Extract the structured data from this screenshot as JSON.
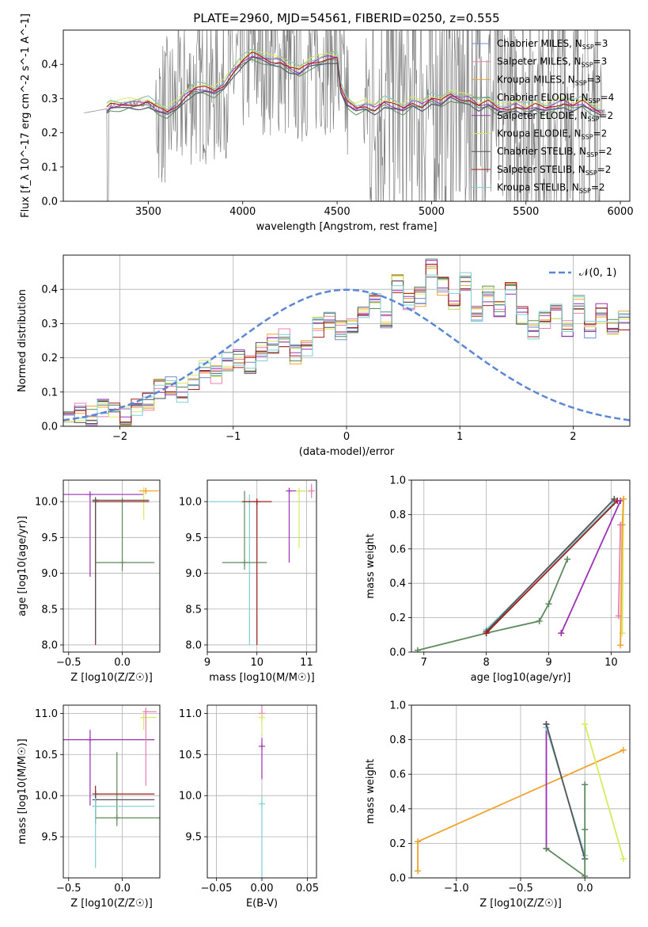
{
  "figure_title": "PLATE=2960, MJD=54561, FIBERID=0250, z=0.555",
  "colors": {
    "Chabrier MILES": "#6f8fd0",
    "Salpeter MILES": "#e87fb0",
    "Kroupa MILES": "#f0a22e",
    "Chabrier ELODIE": "#5d8a5d",
    "Salpeter ELODIE": "#9b30b4",
    "Kroupa ELODIE": "#d8ea62",
    "Chabrier STELIB": "#555555",
    "Salpeter STELIB": "#a01c1c",
    "Kroupa STELIB": "#7ecfd6",
    "data": "#808080",
    "gaussian": "#5b86d6"
  },
  "chart_data": [
    {
      "id": "spectrum",
      "type": "line",
      "title": "PLATE=2960, MJD=54561, FIBERID=0250, z=0.555",
      "xlabel": "wavelength [Angstrom, rest frame]",
      "ylabel": "Flux [f_λ 10^-17 erg cm^-2 s^-1 A^-1]",
      "xlim": [
        3050,
        6050
      ],
      "ylim": [
        0,
        0.5
      ],
      "xticks": [
        3500,
        4000,
        4500,
        5000,
        5500,
        6000
      ],
      "yticks": [
        0.0,
        0.1,
        0.2,
        0.3,
        0.4
      ],
      "legend_position": "top-right",
      "legend": [
        {
          "label": "Chabrier MILES, N",
          "sub": "SSP",
          "suffix": "=3",
          "key": "Chabrier MILES"
        },
        {
          "label": "Salpeter MILES, N",
          "sub": "SSP",
          "suffix": "=3",
          "key": "Salpeter MILES"
        },
        {
          "label": "Kroupa MILES, N",
          "sub": "SSP",
          "suffix": "=3",
          "key": "Kroupa MILES"
        },
        {
          "label": "Chabrier ELODIE, N",
          "sub": "SSP",
          "suffix": "=4",
          "key": "Chabrier ELODIE"
        },
        {
          "label": "Salpeter ELODIE, N",
          "sub": "SSP",
          "suffix": "=2",
          "key": "Salpeter ELODIE"
        },
        {
          "label": "Kroupa ELODIE, N",
          "sub": "SSP",
          "suffix": "=2",
          "key": "Kroupa ELODIE"
        },
        {
          "label": "Chabrier STELIB, N",
          "sub": "SSP",
          "suffix": "=2",
          "key": "Chabrier STELIB"
        },
        {
          "label": "Salpeter STELIB, N",
          "sub": "SSP",
          "suffix": "=2",
          "key": "Salpeter STELIB"
        },
        {
          "label": "Kroupa STELIB, N",
          "sub": "SSP",
          "suffix": "=2",
          "key": "Kroupa STELIB"
        }
      ],
      "model_curve": {
        "x": [
          3280,
          3300,
          3350,
          3400,
          3450,
          3500,
          3550,
          3600,
          3650,
          3700,
          3750,
          3800,
          3850,
          3900,
          3950,
          4000,
          4050,
          4100,
          4150,
          4200,
          4250,
          4300,
          4350,
          4400,
          4450,
          4500,
          4520,
          4550,
          4600,
          4650,
          4700,
          4750,
          4800,
          4850,
          4900,
          4950,
          5000,
          5050,
          5100,
          5150,
          5200,
          5250,
          5300,
          5350,
          5400,
          5450,
          5500,
          5550,
          5600,
          5650,
          5700,
          5750,
          5800,
          5850,
          5900
        ],
        "y": [
          0.27,
          0.28,
          0.28,
          0.285,
          0.285,
          0.29,
          0.27,
          0.26,
          0.28,
          0.31,
          0.33,
          0.33,
          0.32,
          0.34,
          0.38,
          0.41,
          0.43,
          0.42,
          0.41,
          0.41,
          0.39,
          0.38,
          0.4,
          0.41,
          0.42,
          0.42,
          0.33,
          0.29,
          0.27,
          0.28,
          0.27,
          0.29,
          0.28,
          0.27,
          0.29,
          0.28,
          0.3,
          0.29,
          0.31,
          0.3,
          0.3,
          0.28,
          0.29,
          0.27,
          0.27,
          0.28,
          0.27,
          0.28,
          0.27,
          0.28,
          0.29,
          0.28,
          0.29,
          0.27,
          0.26
        ]
      }
    },
    {
      "id": "residuals",
      "type": "step",
      "xlabel": "(data-model)/error",
      "ylabel": "Normed distribution",
      "xlim": [
        -2.5,
        2.5
      ],
      "ylim": [
        0,
        0.5
      ],
      "xticks": [
        -2,
        -1,
        0,
        1,
        2
      ],
      "yticks": [
        0.0,
        0.1,
        0.2,
        0.3,
        0.4
      ],
      "legend_position": "top-right",
      "legend": [
        {
          "label": "𝒩(0, 1)",
          "key": "gaussian"
        }
      ],
      "bin_edges_range": [
        -2.5,
        2.5
      ],
      "bin_width": 0.1,
      "histogram": [
        0.03,
        0.04,
        0.03,
        0.05,
        0.04,
        0.03,
        0.06,
        0.07,
        0.11,
        0.12,
        0.1,
        0.13,
        0.17,
        0.15,
        0.19,
        0.2,
        0.18,
        0.22,
        0.24,
        0.26,
        0.21,
        0.23,
        0.29,
        0.31,
        0.28,
        0.3,
        0.33,
        0.37,
        0.31,
        0.42,
        0.36,
        0.38,
        0.46,
        0.41,
        0.36,
        0.42,
        0.33,
        0.38,
        0.35,
        0.39,
        0.32,
        0.28,
        0.31,
        0.34,
        0.29,
        0.36,
        0.28,
        0.33,
        0.29,
        0.31
      ]
    },
    {
      "id": "age-vs-Z",
      "type": "errorbar",
      "xlabel": "Z [log10(Z/Z☉)]",
      "ylabel": "age  [log10(age/yr)]",
      "xlim": [
        -0.55,
        0.35
      ],
      "ylim": [
        7.9,
        10.3
      ],
      "xticks": [
        -0.5,
        0.0,
        0.5
      ],
      "yticks": [
        8.0,
        8.5,
        9.0,
        9.5,
        10.0
      ],
      "points": [
        {
          "key": "Salpeter ELODIE",
          "x": -0.3,
          "y": 10.1,
          "xerr": [
            0.25,
            0.5
          ],
          "yerr": [
            1.15,
            0
          ]
        },
        {
          "key": "Kroupa ELODIE",
          "x": 0.2,
          "y": 10.15,
          "xerr": [
            0.05,
            0.12
          ],
          "yerr": [
            0.4,
            0.05
          ]
        },
        {
          "key": "Chabrier ELODIE",
          "x": 0.0,
          "y": 9.15,
          "xerr": [
            0.25,
            0.3
          ],
          "yerr": [
            0.12,
            0.9
          ]
        },
        {
          "key": "Salpeter STELIB",
          "x": -0.25,
          "y": 10.0,
          "xerr": [
            0,
            0.5
          ],
          "yerr": [
            2.0,
            0
          ]
        },
        {
          "key": "Chabrier STELIB",
          "x": -0.25,
          "y": 10.02,
          "xerr": [
            0,
            0.5
          ],
          "yerr": [
            2.0,
            0
          ]
        },
        {
          "key": "Kroupa MILES",
          "x": 0.22,
          "y": 10.15,
          "xerr": [
            0.06,
            0.12
          ],
          "yerr": [
            0.04,
            0.04
          ]
        }
      ]
    },
    {
      "id": "age-vs-mass",
      "type": "errorbar",
      "xlabel": "mass [log10(M/M☉)]",
      "xlim": [
        9.0,
        11.2
      ],
      "ylim": [
        7.9,
        10.3
      ],
      "xticks": [
        9,
        10,
        11
      ],
      "yticks": [
        8.0,
        8.5,
        9.0,
        9.5,
        10.0
      ],
      "points": [
        {
          "key": "Kroupa STELIB",
          "x": 9.85,
          "y": 10.0,
          "xerr": [
            0.8,
            0.2
          ],
          "yerr": [
            2.0,
            0.1
          ]
        },
        {
          "key": "Chabrier ELODIE",
          "x": 9.75,
          "y": 9.15,
          "xerr": [
            0.45,
            0.45
          ],
          "yerr": [
            0.1,
            1.0
          ]
        },
        {
          "key": "Salpeter STELIB",
          "x": 10.0,
          "y": 10.0,
          "xerr": [
            0.3,
            0.3
          ],
          "yerr": [
            2.0,
            0
          ]
        },
        {
          "key": "Salpeter ELODIE",
          "x": 10.65,
          "y": 10.15,
          "xerr": [
            0,
            0.4
          ],
          "yerr": [
            1.0,
            0
          ]
        },
        {
          "key": "Kroupa ELODIE",
          "x": 10.85,
          "y": 10.15,
          "xerr": [
            0,
            0.3
          ],
          "yerr": [
            0.8,
            0
          ]
        },
        {
          "key": "Salpeter MILES",
          "x": 11.1,
          "y": 10.15,
          "xerr": [
            0.05,
            0.05
          ],
          "yerr": [
            0.1,
            0.1
          ]
        }
      ]
    },
    {
      "id": "massweight-vs-age",
      "type": "line",
      "xlabel": "age  [log10(age/yr)]",
      "ylabel": "mass weight",
      "xlim": [
        6.8,
        10.3
      ],
      "ylim": [
        0,
        1.0
      ],
      "xticks": [
        7,
        8,
        9,
        10
      ],
      "yticks": [
        0.0,
        0.2,
        0.4,
        0.6,
        0.8,
        1.0
      ],
      "series": [
        {
          "key": "Chabrier ELODIE",
          "x": [
            6.9,
            8.0,
            8.85,
            9.0,
            9.3
          ],
          "y": [
            0.01,
            0.11,
            0.18,
            0.28,
            0.54
          ]
        },
        {
          "key": "Kroupa STELIB",
          "x": [
            8.0,
            10.05
          ],
          "y": [
            0.13,
            0.87
          ]
        },
        {
          "key": "Chabrier STELIB",
          "x": [
            8.0,
            10.05
          ],
          "y": [
            0.12,
            0.89
          ]
        },
        {
          "key": "Salpeter STELIB",
          "x": [
            8.0,
            10.1
          ],
          "y": [
            0.11,
            0.88
          ]
        },
        {
          "key": "Salpeter ELODIE",
          "x": [
            9.2,
            10.15
          ],
          "y": [
            0.11,
            0.88
          ]
        },
        {
          "key": "Kroupa ELODIE",
          "x": [
            10.2,
            10.18
          ],
          "y": [
            0.89,
            0.11
          ]
        },
        {
          "key": "Kroupa MILES",
          "x": [
            10.15,
            10.18,
            10.2
          ],
          "y": [
            0.04,
            0.74,
            0.89
          ]
        },
        {
          "key": "Salpeter MILES",
          "x": [
            10.12,
            10.15
          ],
          "y": [
            0.21,
            0.74
          ]
        }
      ]
    },
    {
      "id": "mass-vs-Z",
      "type": "errorbar",
      "xlabel": "Z [log10(Z/Z☉)]",
      "ylabel": "mass [log10(M/M☉)]",
      "xlim": [
        -0.55,
        0.35
      ],
      "ylim": [
        9.0,
        11.1
      ],
      "xticks": [
        -0.5,
        0.0
      ],
      "yticks": [
        9.5,
        10.0,
        10.5,
        11.0
      ],
      "points": [
        {
          "key": "Salpeter ELODIE",
          "x": -0.3,
          "y": 10.68,
          "xerr": [
            0.25,
            0.6
          ],
          "yerr": [
            0.8,
            0.12
          ]
        },
        {
          "key": "Kroupa ELODIE",
          "x": 0.2,
          "y": 10.95,
          "xerr": [
            0.03,
            0.12
          ],
          "yerr": [
            0.15,
            0.05
          ]
        },
        {
          "key": "Salpeter MILES",
          "x": 0.22,
          "y": 11.02,
          "xerr": [
            0.0,
            0.1
          ],
          "yerr": [
            0.9,
            0.05
          ]
        },
        {
          "key": "Chabrier ELODIE",
          "x": -0.05,
          "y": 9.73,
          "xerr": [
            0.2,
            0.4
          ],
          "yerr": [
            0.1,
            0.8
          ]
        },
        {
          "key": "Salpeter STELIB",
          "x": -0.25,
          "y": 10.02,
          "xerr": [
            0.0,
            0.55
          ],
          "yerr": [
            0.3,
            0.1
          ]
        },
        {
          "key": "Chabrier STELIB",
          "x": -0.25,
          "y": 9.95,
          "xerr": [
            0.0,
            0.55
          ],
          "yerr": [
            0.3,
            0.1
          ]
        },
        {
          "key": "Kroupa STELIB",
          "x": -0.25,
          "y": 9.87,
          "xerr": [
            0.0,
            0.55
          ],
          "yerr": [
            0.75,
            0.1
          ]
        }
      ]
    },
    {
      "id": "mass-vs-EBV",
      "type": "errorbar",
      "xlabel": "E(B-V)",
      "xlim": [
        -0.06,
        0.06
      ],
      "ylim": [
        9.0,
        11.1
      ],
      "xticks": [
        -0.05,
        0.0,
        0.05
      ],
      "yticks": [
        9.5,
        10.0,
        10.5,
        11.0
      ],
      "points": [
        {
          "key": "Kroupa STELIB",
          "x": 0.0,
          "y": 9.9,
          "xerr": [
            0,
            0
          ],
          "yerr": [
            0.9,
            0.1
          ]
        },
        {
          "key": "Salpeter ELODIE",
          "x": 0.0,
          "y": 10.6,
          "xerr": [
            0,
            0
          ],
          "yerr": [
            0.4,
            0.1
          ]
        },
        {
          "key": "Salpeter MILES",
          "x": 0.0,
          "y": 11.0,
          "xerr": [
            0,
            0
          ],
          "yerr": [
            0.1,
            0.1
          ]
        },
        {
          "key": "Kroupa ELODIE",
          "x": 0.0,
          "y": 10.95,
          "xerr": [
            0,
            0
          ],
          "yerr": [
            0.2,
            0.05
          ]
        }
      ]
    },
    {
      "id": "massweight-vs-Z",
      "type": "line",
      "xlabel": "Z [log10(Z/Z☉)]",
      "ylabel": "mass weight",
      "xlim": [
        -1.35,
        0.35
      ],
      "ylim": [
        0,
        1.0
      ],
      "xticks": [
        -1.0,
        -0.5,
        0.0
      ],
      "yticks": [
        0.0,
        0.2,
        0.4,
        0.6,
        0.8,
        1.0
      ],
      "series": [
        {
          "key": "Kroupa MILES",
          "x": [
            -1.3,
            -1.3,
            0.3
          ],
          "y": [
            0.04,
            0.21,
            0.74
          ]
        },
        {
          "key": "Salpeter ELODIE",
          "x": [
            -0.3,
            -0.3
          ],
          "y": [
            0.17,
            0.89
          ]
        },
        {
          "key": "Kroupa STELIB",
          "x": [
            -0.3,
            0.0
          ],
          "y": [
            0.87,
            0.13
          ]
        },
        {
          "key": "Chabrier STELIB",
          "x": [
            -0.3,
            0.0
          ],
          "y": [
            0.89,
            0.11
          ]
        },
        {
          "key": "Chabrier ELODIE",
          "x": [
            -0.3,
            0.0,
            0.0,
            0.0
          ],
          "y": [
            0.17,
            0.01,
            0.28,
            0.54
          ]
        },
        {
          "key": "Kroupa ELODIE",
          "x": [
            0.0,
            0.3
          ],
          "y": [
            0.89,
            0.11
          ]
        }
      ]
    }
  ]
}
